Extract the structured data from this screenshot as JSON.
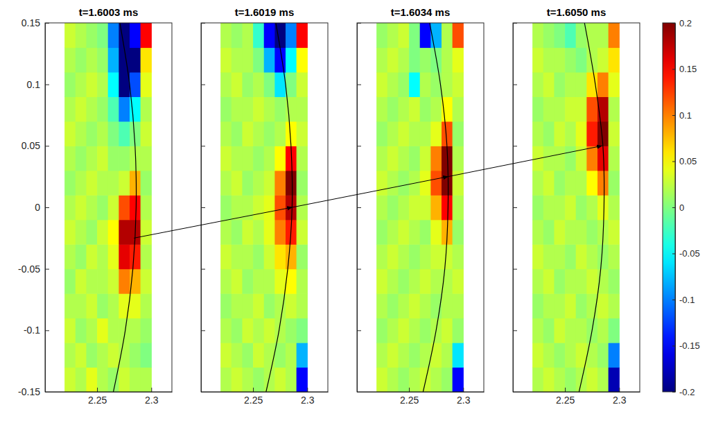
{
  "chart_data": {
    "type": "heatmap",
    "xlim": [
      2.202,
      2.319
    ],
    "ylim": [
      -0.15,
      0.15
    ],
    "xticks": [
      2.25,
      2.3
    ],
    "yticks": [
      -0.15,
      -0.1,
      -0.05,
      0,
      0.05,
      0.1,
      0.15
    ],
    "x": [
      2.225,
      2.235,
      2.245,
      2.255,
      2.265,
      2.275,
      2.285,
      2.295
    ],
    "y": [
      -0.14,
      -0.12,
      -0.1,
      -0.08,
      -0.06,
      -0.04,
      -0.02,
      0,
      0.02,
      0.04,
      0.06,
      0.08,
      0.1,
      0.12,
      0.14
    ],
    "colorbar": {
      "range": [
        -0.2,
        0.2
      ],
      "ticks": [
        -0.2,
        -0.15,
        -0.1,
        -0.05,
        0,
        0.05,
        0.1,
        0.15,
        0.2
      ]
    },
    "panels": [
      {
        "title": "t=1.6003 ms",
        "z": [
          [
            0.03,
            0.02,
            0.04,
            0.02,
            0.01,
            0.03,
            0.02,
            0.02
          ],
          [
            0.02,
            0.03,
            0.01,
            0.02,
            0.03,
            0.02,
            0.01,
            0.0
          ],
          [
            0.03,
            0.01,
            0.02,
            0.04,
            0.02,
            0.02,
            0.02,
            0.01
          ],
          [
            0.02,
            0.02,
            0.03,
            0.01,
            0.02,
            0.04,
            0.04,
            0.02
          ],
          [
            0.01,
            0.03,
            0.02,
            0.02,
            0.03,
            0.1,
            0.08,
            0.03
          ],
          [
            0.02,
            0.01,
            0.03,
            0.02,
            0.04,
            0.16,
            0.14,
            0.02
          ],
          [
            0.03,
            0.02,
            0.01,
            0.03,
            0.05,
            0.18,
            0.18,
            0.03
          ],
          [
            0.02,
            0.03,
            0.02,
            0.01,
            0.03,
            0.12,
            0.15,
            0.02
          ],
          [
            0.01,
            0.02,
            0.03,
            0.02,
            0.02,
            0.03,
            0.08,
            0.01
          ],
          [
            0.02,
            0.01,
            0.02,
            0.03,
            0.01,
            0.01,
            0.02,
            0.02
          ],
          [
            0.03,
            0.02,
            0.01,
            0.02,
            0.0,
            -0.02,
            0.0,
            0.03
          ],
          [
            0.02,
            0.03,
            0.02,
            0.01,
            -0.02,
            -0.1,
            -0.05,
            0.02
          ],
          [
            0.01,
            0.02,
            0.03,
            0.02,
            -0.05,
            -0.2,
            -0.12,
            0.04
          ],
          [
            0.02,
            0.01,
            0.02,
            0.01,
            -0.08,
            -0.2,
            -0.2,
            0.06
          ],
          [
            0.03,
            0.02,
            0.01,
            0.0,
            -0.1,
            -0.2,
            -0.15,
            0.15
          ]
        ],
        "curve": {
          "x": [
            2.265,
            2.276,
            2.283,
            2.286,
            2.285,
            2.28,
            2.271
          ],
          "y": [
            -0.15,
            -0.1,
            -0.05,
            0,
            0.05,
            0.1,
            0.15
          ]
        }
      },
      {
        "title": "t=1.6019 ms",
        "z": [
          [
            0.02,
            0.03,
            0.02,
            0.01,
            0.02,
            0.03,
            0.02,
            -0.15
          ],
          [
            0.03,
            0.02,
            0.01,
            0.03,
            0.02,
            0.01,
            0.02,
            -0.08
          ],
          [
            0.02,
            0.01,
            0.03,
            0.02,
            0.03,
            0.02,
            0.01,
            0.0
          ],
          [
            0.01,
            0.02,
            0.02,
            0.03,
            0.01,
            0.02,
            0.03,
            0.02
          ],
          [
            0.02,
            0.03,
            0.01,
            0.02,
            0.02,
            0.04,
            0.05,
            0.02
          ],
          [
            0.03,
            0.02,
            0.02,
            0.01,
            0.03,
            0.06,
            0.08,
            0.01
          ],
          [
            0.02,
            0.01,
            0.03,
            0.02,
            0.04,
            0.1,
            0.14,
            0.03
          ],
          [
            0.01,
            0.02,
            0.02,
            0.03,
            0.04,
            0.12,
            0.18,
            0.02
          ],
          [
            0.02,
            0.03,
            0.01,
            0.02,
            0.03,
            0.1,
            0.2,
            0.01
          ],
          [
            0.03,
            0.02,
            0.02,
            0.01,
            0.02,
            0.05,
            0.15,
            0.02
          ],
          [
            0.02,
            0.01,
            0.03,
            0.02,
            0.01,
            0.02,
            0.05,
            0.03
          ],
          [
            0.01,
            0.02,
            0.02,
            0.03,
            0.02,
            0.01,
            0.02,
            0.02
          ],
          [
            0.02,
            0.03,
            0.01,
            0.02,
            0.0,
            -0.06,
            0.0,
            0.03
          ],
          [
            0.03,
            0.02,
            0.02,
            0.0,
            -0.08,
            -0.15,
            -0.05,
            0.05
          ],
          [
            0.02,
            0.01,
            0.02,
            -0.03,
            -0.15,
            -0.2,
            -0.1,
            0.15
          ]
        ],
        "curve": {
          "x": [
            2.262,
            2.274,
            2.282,
            2.286,
            2.285,
            2.28,
            2.271
          ],
          "y": [
            -0.15,
            -0.1,
            -0.05,
            0,
            0.05,
            0.1,
            0.15
          ]
        }
      },
      {
        "title": "t=1.6034 ms",
        "z": [
          [
            0.03,
            0.02,
            0.01,
            0.02,
            0.03,
            0.02,
            0.01,
            -0.15
          ],
          [
            0.02,
            0.03,
            0.02,
            0.01,
            0.02,
            0.03,
            0.02,
            -0.06
          ],
          [
            0.01,
            0.02,
            0.03,
            0.02,
            0.01,
            0.02,
            0.03,
            0.01
          ],
          [
            0.02,
            0.01,
            0.02,
            0.03,
            0.02,
            0.01,
            0.02,
            0.02
          ],
          [
            0.03,
            0.02,
            0.01,
            0.02,
            0.03,
            0.02,
            0.02,
            0.03
          ],
          [
            0.02,
            0.03,
            0.02,
            0.01,
            0.02,
            0.03,
            0.03,
            0.02
          ],
          [
            0.01,
            0.02,
            0.03,
            0.02,
            0.01,
            0.04,
            0.08,
            0.01
          ],
          [
            0.02,
            0.01,
            0.02,
            0.03,
            0.03,
            0.08,
            0.15,
            0.02
          ],
          [
            0.03,
            0.02,
            0.01,
            0.02,
            0.04,
            0.12,
            0.2,
            0.03
          ],
          [
            0.02,
            0.03,
            0.02,
            0.01,
            0.03,
            0.1,
            0.2,
            0.02
          ],
          [
            0.01,
            0.02,
            0.03,
            0.02,
            0.02,
            0.04,
            0.12,
            0.01
          ],
          [
            0.02,
            0.01,
            0.02,
            0.03,
            0.01,
            0.02,
            0.05,
            0.02
          ],
          [
            0.03,
            0.02,
            0.01,
            -0.05,
            0.02,
            0.01,
            0.02,
            0.03
          ],
          [
            0.02,
            0.03,
            0.02,
            0.0,
            0.01,
            0.0,
            0.02,
            0.04
          ],
          [
            0.01,
            0.02,
            0.03,
            0.0,
            -0.15,
            -0.08,
            0.02,
            0.12
          ]
        ],
        "curve": {
          "x": [
            2.263,
            2.275,
            2.283,
            2.286,
            2.285,
            2.279,
            2.269
          ],
          "y": [
            -0.15,
            -0.1,
            -0.05,
            0,
            0.05,
            0.1,
            0.15
          ]
        }
      },
      {
        "title": "t=1.6050 ms",
        "z": [
          [
            0.02,
            0.03,
            0.02,
            0.01,
            0.02,
            0.03,
            0.02,
            -0.18
          ],
          [
            0.03,
            0.02,
            0.01,
            0.02,
            0.03,
            0.02,
            0.01,
            -0.1
          ],
          [
            0.02,
            0.01,
            0.03,
            0.02,
            0.02,
            0.01,
            0.02,
            0.0
          ],
          [
            0.01,
            0.02,
            0.02,
            0.03,
            0.01,
            0.02,
            0.03,
            0.02
          ],
          [
            0.02,
            0.03,
            0.01,
            0.02,
            0.02,
            0.03,
            0.02,
            0.01
          ],
          [
            0.03,
            0.02,
            0.02,
            0.01,
            0.03,
            0.02,
            0.01,
            0.02
          ],
          [
            0.02,
            0.01,
            0.03,
            0.02,
            0.02,
            0.01,
            0.02,
            0.03
          ],
          [
            0.01,
            0.02,
            0.02,
            0.03,
            0.01,
            0.02,
            0.04,
            0.02
          ],
          [
            0.02,
            0.03,
            0.01,
            0.02,
            0.02,
            0.05,
            0.1,
            0.01
          ],
          [
            0.03,
            0.02,
            0.02,
            0.01,
            0.03,
            0.1,
            0.16,
            0.02
          ],
          [
            0.02,
            0.01,
            0.03,
            0.02,
            0.04,
            0.14,
            0.2,
            0.03
          ],
          [
            0.01,
            0.02,
            0.02,
            0.03,
            0.03,
            0.12,
            0.18,
            0.02
          ],
          [
            0.02,
            0.03,
            0.01,
            0.02,
            0.02,
            0.06,
            0.1,
            0.04
          ],
          [
            0.03,
            0.02,
            0.02,
            0.01,
            0.0,
            0.02,
            0.03,
            0.06
          ],
          [
            0.02,
            0.01,
            0.0,
            -0.02,
            0.01,
            0.02,
            0.02,
            0.1
          ]
        ],
        "curve": {
          "x": [
            2.263,
            2.275,
            2.283,
            2.286,
            2.285,
            2.278,
            2.268
          ],
          "y": [
            -0.15,
            -0.1,
            -0.05,
            0,
            0.05,
            0.1,
            0.15
          ]
        }
      }
    ],
    "arrows": [
      {
        "from": {
          "panel": 0,
          "x": 2.284,
          "y": -0.025
        },
        "to": {
          "panel": 1,
          "x": 2.286,
          "y": 0
        }
      },
      {
        "from": {
          "panel": 1,
          "x": 2.286,
          "y": 0
        },
        "to": {
          "panel": 2,
          "x": 2.286,
          "y": 0.025
        }
      },
      {
        "from": {
          "panel": 2,
          "x": 2.286,
          "y": 0.025
        },
        "to": {
          "panel": 3,
          "x": 2.284,
          "y": 0.05
        }
      }
    ]
  }
}
